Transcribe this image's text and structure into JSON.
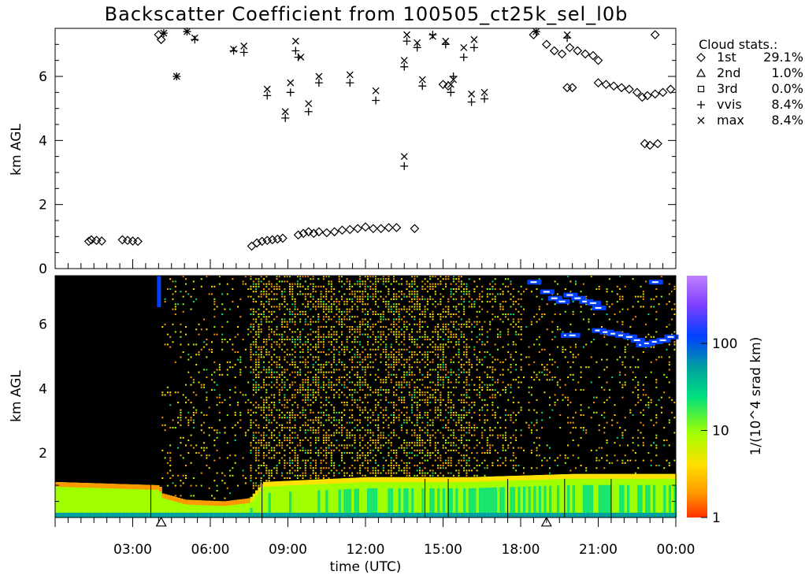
{
  "chart_data": [
    {
      "type": "scatter",
      "panel": "cloud-base",
      "title": "Backscatter Coefficient from 100505_ct25k_sel_l0b",
      "ylabel": "km AGL",
      "xlim": [
        "00:00",
        "24:00"
      ],
      "ylim": [
        0,
        7.5
      ],
      "yticks": [
        "0",
        "2",
        "4",
        "6"
      ],
      "legend": {
        "heading": "Cloud stats.:",
        "placement": "right",
        "entries": [
          {
            "name": "1st",
            "value": "29.1%",
            "marker": "diamond"
          },
          {
            "name": "2nd",
            "value": "1.0%",
            "marker": "triangle"
          },
          {
            "name": "3rd",
            "value": "0.0%",
            "marker": "square"
          },
          {
            "name": "vvis",
            "value": "8.4%",
            "marker": "plus"
          },
          {
            "name": "max",
            "value": "8.4%",
            "marker": "cross"
          }
        ]
      },
      "series": [
        {
          "name": "1st",
          "marker": "diamond",
          "points": [
            [
              1.3,
              0.85
            ],
            [
              1.4,
              0.9
            ],
            [
              1.6,
              0.88
            ],
            [
              1.8,
              0.86
            ],
            [
              2.6,
              0.9
            ],
            [
              2.8,
              0.88
            ],
            [
              3.0,
              0.86
            ],
            [
              3.2,
              0.85
            ],
            [
              4.0,
              7.3
            ],
            [
              4.1,
              7.15
            ],
            [
              7.6,
              0.7
            ],
            [
              7.8,
              0.8
            ],
            [
              8.0,
              0.85
            ],
            [
              8.2,
              0.88
            ],
            [
              8.4,
              0.9
            ],
            [
              8.6,
              0.92
            ],
            [
              8.8,
              0.95
            ],
            [
              9.4,
              1.05
            ],
            [
              9.6,
              1.1
            ],
            [
              9.8,
              1.15
            ],
            [
              10.0,
              1.1
            ],
            [
              10.2,
              1.15
            ],
            [
              10.5,
              1.12
            ],
            [
              10.8,
              1.15
            ],
            [
              11.1,
              1.2
            ],
            [
              11.4,
              1.22
            ],
            [
              11.7,
              1.25
            ],
            [
              12.0,
              1.3
            ],
            [
              12.3,
              1.25
            ],
            [
              12.6,
              1.25
            ],
            [
              12.9,
              1.28
            ],
            [
              13.2,
              1.28
            ],
            [
              13.9,
              1.25
            ],
            [
              15.0,
              5.75
            ],
            [
              15.2,
              5.7
            ],
            [
              18.5,
              7.3
            ],
            [
              19.0,
              7.0
            ],
            [
              19.3,
              6.8
            ],
            [
              19.6,
              6.7
            ],
            [
              19.9,
              6.9
            ],
            [
              20.2,
              6.8
            ],
            [
              20.5,
              6.7
            ],
            [
              20.8,
              6.65
            ],
            [
              21.0,
              6.5
            ],
            [
              19.8,
              5.65
            ],
            [
              20.0,
              5.65
            ],
            [
              21.0,
              5.8
            ],
            [
              21.3,
              5.75
            ],
            [
              21.6,
              5.7
            ],
            [
              21.9,
              5.65
            ],
            [
              22.2,
              5.6
            ],
            [
              22.5,
              5.5
            ],
            [
              22.7,
              5.35
            ],
            [
              22.9,
              5.4
            ],
            [
              23.2,
              5.45
            ],
            [
              23.5,
              5.5
            ],
            [
              23.8,
              5.6
            ],
            [
              22.8,
              3.9
            ],
            [
              23.0,
              3.85
            ],
            [
              23.2,
              7.3
            ],
            [
              23.3,
              3.9
            ]
          ]
        },
        {
          "name": "2nd",
          "marker": "triangle",
          "points": [
            [
              4.1,
              -0.2
            ],
            [
              19.0,
              -0.2
            ]
          ]
        },
        {
          "name": "vvis",
          "marker": "plus",
          "points": [
            [
              4.2,
              7.35
            ],
            [
              4.7,
              6.0
            ],
            [
              5.1,
              7.4
            ],
            [
              5.4,
              7.15
            ],
            [
              6.9,
              6.8
            ],
            [
              7.3,
              6.75
            ],
            [
              8.2,
              5.4
            ],
            [
              8.9,
              4.7
            ],
            [
              9.1,
              5.5
            ],
            [
              9.3,
              6.8
            ],
            [
              9.4,
              6.6
            ],
            [
              9.8,
              4.9
            ],
            [
              10.2,
              5.8
            ],
            [
              11.4,
              5.8
            ],
            [
              12.4,
              5.25
            ],
            [
              13.5,
              3.2
            ],
            [
              13.5,
              6.3
            ],
            [
              13.6,
              7.1
            ],
            [
              14.0,
              6.9
            ],
            [
              14.2,
              5.7
            ],
            [
              14.6,
              7.3
            ],
            [
              15.1,
              7.0
            ],
            [
              15.3,
              5.5
            ],
            [
              15.4,
              6.0
            ],
            [
              15.8,
              6.6
            ],
            [
              16.1,
              5.2
            ],
            [
              16.2,
              6.9
            ],
            [
              16.6,
              5.3
            ],
            [
              18.6,
              7.4
            ],
            [
              19.8,
              7.2
            ]
          ]
        },
        {
          "name": "max",
          "marker": "cross",
          "points": [
            [
              4.2,
              7.35
            ],
            [
              4.7,
              6.0
            ],
            [
              5.1,
              7.4
            ],
            [
              5.4,
              7.2
            ],
            [
              6.9,
              6.85
            ],
            [
              7.3,
              6.95
            ],
            [
              8.2,
              5.6
            ],
            [
              8.9,
              4.9
            ],
            [
              9.1,
              5.8
            ],
            [
              9.3,
              7.1
            ],
            [
              9.5,
              6.6
            ],
            [
              9.8,
              5.15
            ],
            [
              10.2,
              6.0
            ],
            [
              11.4,
              6.05
            ],
            [
              12.4,
              5.55
            ],
            [
              13.5,
              3.5
            ],
            [
              13.5,
              6.5
            ],
            [
              13.6,
              7.3
            ],
            [
              14.0,
              7.05
            ],
            [
              14.2,
              5.9
            ],
            [
              14.6,
              7.25
            ],
            [
              15.1,
              7.1
            ],
            [
              15.3,
              5.75
            ],
            [
              15.4,
              5.9
            ],
            [
              15.8,
              6.9
            ],
            [
              16.1,
              5.45
            ],
            [
              16.2,
              7.15
            ],
            [
              16.6,
              5.5
            ],
            [
              18.6,
              7.4
            ],
            [
              19.8,
              7.3
            ]
          ]
        }
      ]
    },
    {
      "type": "heatmap",
      "panel": "backscatter",
      "xlabel": "time (UTC)",
      "ylabel": "km AGL",
      "xticks": [
        "03:00",
        "06:00",
        "09:00",
        "12:00",
        "15:00",
        "18:00",
        "21:00",
        "00:00"
      ],
      "xlim": [
        "00:00",
        "24:00"
      ],
      "ylim": [
        0,
        7.5
      ],
      "yticks": [
        "2",
        "4",
        "6"
      ],
      "colorbar": {
        "label": "1/(10^4 srad km)",
        "scale": "log",
        "range": [
          1,
          600
        ],
        "ticks": [
          "1",
          "10",
          "100"
        ],
        "colors": [
          "#ff3000",
          "#ff9800",
          "#ffe000",
          "#a0ff00",
          "#00e080",
          "#00a0a0",
          "#0040ff",
          "#8040ff",
          "#c080ff"
        ]
      },
      "background_color": "#000000",
      "surface_layer_top_km": [
        [
          0,
          1.1
        ],
        [
          2,
          1.05
        ],
        [
          4,
          1.0
        ],
        [
          4.1,
          0.75
        ],
        [
          5,
          0.55
        ],
        [
          6.5,
          0.5
        ],
        [
          7.5,
          0.6
        ],
        [
          8,
          1.1
        ],
        [
          12,
          1.25
        ],
        [
          16,
          1.25
        ],
        [
          20,
          1.35
        ],
        [
          24,
          1.35
        ]
      ]
    }
  ]
}
